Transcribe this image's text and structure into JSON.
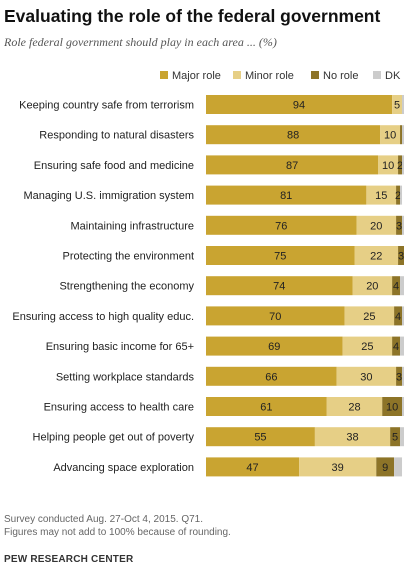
{
  "title": "Evaluating the role of the federal government",
  "subtitle": "Role federal government should play in each area ... (%)",
  "notes": [
    "Survey conducted Aug. 27-Oct 4, 2015. Q71.",
    "Figures may not add to 100% because of rounding."
  ],
  "source": "PEW RESEARCH CENTER",
  "colors": {
    "major": "#c9a431",
    "minor": "#e6cf86",
    "none": "#8d7428",
    "dk": "#cccccc"
  },
  "chart_data": {
    "type": "bar",
    "orientation": "horizontal",
    "stacked": true,
    "xlim": [
      0,
      100
    ],
    "legend_position": "top-right",
    "categories": [
      "Keeping country safe from terrorism",
      "Responding to natural disasters",
      "Ensuring safe food and medicine",
      "Managing U.S. immigration system",
      "Maintaining infrastructure",
      "Protecting the environment",
      "Strengthening the economy",
      "Ensuring access to high quality educ.",
      "Ensuring basic income for 65+",
      "Setting workplace standards",
      "Ensuring access to health care",
      "Helping people get out of poverty",
      "Advancing space exploration"
    ],
    "series": [
      {
        "name": "Major role",
        "values": [
          94,
          88,
          87,
          81,
          76,
          75,
          74,
          70,
          69,
          66,
          61,
          55,
          47
        ]
      },
      {
        "name": "Minor role",
        "values": [
          5,
          10,
          10,
          15,
          20,
          22,
          20,
          25,
          25,
          30,
          28,
          38,
          39
        ]
      },
      {
        "name": "No role",
        "values": [
          0,
          1,
          2,
          2,
          3,
          3,
          4,
          4,
          4,
          3,
          10,
          5,
          9
        ]
      },
      {
        "name": "DK",
        "values": [
          1,
          1,
          1,
          1,
          1,
          0,
          2,
          1,
          2,
          1,
          1,
          2,
          4
        ]
      }
    ],
    "labels": {
      "Major role": [
        "94",
        "88",
        "87",
        "81",
        "76",
        "75",
        "74",
        "70",
        "69",
        "66",
        "61",
        "55",
        "47"
      ],
      "Minor role": [
        "5",
        "10",
        "10",
        "15",
        "20",
        "22",
        "20",
        "25",
        "25",
        "30",
        "28",
        "38",
        "39"
      ],
      "No role": [
        "",
        "",
        "2",
        "2",
        "3",
        "3",
        "4",
        "4",
        "4",
        "3",
        "10",
        "5",
        "9"
      ],
      "DK": [
        "",
        "",
        "",
        "",
        "",
        "",
        "",
        "",
        "",
        "",
        "",
        "",
        ""
      ]
    }
  }
}
